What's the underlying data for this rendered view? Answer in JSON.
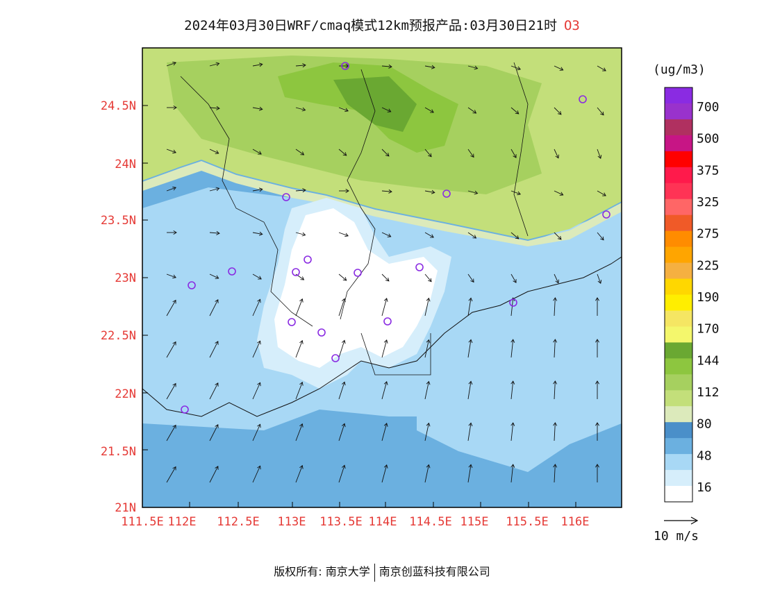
{
  "title": {
    "main": "2024年03月30日WRF/cmaq模式12km预报产品:03月30日21时",
    "species": "O3"
  },
  "axes": {
    "latitude_ticks": [
      "21N",
      "21.5N",
      "22N",
      "22.5N",
      "23N",
      "23.5N",
      "24N",
      "24.5N"
    ],
    "longitude_ticks": [
      "111.5E",
      "112E",
      "112.5E",
      "113E",
      "113.5E",
      "114E",
      "114.5E",
      "115E",
      "115.5E",
      "116E"
    ]
  },
  "legend": {
    "unit": "(ug/m3)",
    "labels": [
      "700",
      "500",
      "375",
      "325",
      "275",
      "225",
      "190",
      "170",
      "144",
      "112",
      "80",
      "48",
      "16"
    ],
    "colors": [
      "#8a2be2",
      "#9932cc",
      "#b03060",
      "#c71585",
      "#ff0000",
      "#ff1a4b",
      "#ff3355",
      "#ff6666",
      "#f05a28",
      "#ff8c00",
      "#ffa500",
      "#f5b041",
      "#ffd700",
      "#ffee00",
      "#f5e663",
      "#f4f76c",
      "#6aa832",
      "#8dc63f",
      "#a6d05f",
      "#c3df7a",
      "#dceabb",
      "#4a8fc9",
      "#6bb0e0",
      "#a8d8f5",
      "#d6eefb",
      "#ffffff"
    ]
  },
  "wind_scale": {
    "label": "10 m/s"
  },
  "footer": {
    "left": "版权所有: 南京大学",
    "right": "南京创蓝科技有限公司"
  },
  "colors": {
    "axis_text": "#e53935",
    "frame": "#000000",
    "station_marker": "#8a2be2"
  }
}
